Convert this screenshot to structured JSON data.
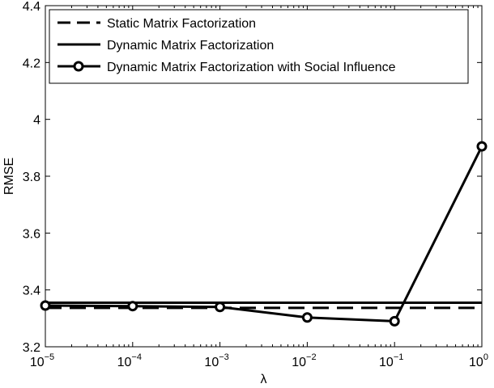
{
  "chart_data": {
    "type": "line",
    "title": "",
    "xlabel": "λ",
    "ylabel": "RMSE",
    "xscale": "log",
    "xlim": [
      1e-05,
      1
    ],
    "ylim": [
      3.2,
      4.4
    ],
    "grid": false,
    "legend_position": "top-left",
    "x_ticks": [
      {
        "value": 1e-05,
        "base": "10",
        "exp": "−5"
      },
      {
        "value": 0.0001,
        "base": "10",
        "exp": "−4"
      },
      {
        "value": 0.001,
        "base": "10",
        "exp": "−3"
      },
      {
        "value": 0.01,
        "base": "10",
        "exp": "−2"
      },
      {
        "value": 0.1,
        "base": "10",
        "exp": "−1"
      },
      {
        "value": 1,
        "base": "10",
        "exp": "0"
      }
    ],
    "y_ticks": [
      {
        "value": 3.2,
        "label": "3.2"
      },
      {
        "value": 3.4,
        "label": "3.4"
      },
      {
        "value": 3.6,
        "label": "3.6"
      },
      {
        "value": 3.8,
        "label": "3.8"
      },
      {
        "value": 4.0,
        "label": "4"
      },
      {
        "value": 4.2,
        "label": "4.2"
      },
      {
        "value": 4.4,
        "label": "4.4"
      }
    ],
    "x": [
      1e-05,
      0.0001,
      0.001,
      0.01,
      0.1,
      1
    ],
    "series": [
      {
        "name": "Static Matrix Factorization",
        "style": "dashed",
        "color": "#000000",
        "markers": false,
        "values": [
          3.337,
          3.337,
          3.337,
          3.337,
          3.337,
          3.337
        ]
      },
      {
        "name": "Dynamic Matrix Factorization",
        "style": "solid",
        "color": "#000000",
        "markers": false,
        "values": [
          3.355,
          3.355,
          3.355,
          3.355,
          3.355,
          3.355
        ]
      },
      {
        "name": "Dynamic Matrix Factorization with Social Influence",
        "style": "solid",
        "color": "#000000",
        "markers": true,
        "values": [
          3.345,
          3.343,
          3.34,
          3.303,
          3.29,
          3.905
        ]
      }
    ]
  }
}
